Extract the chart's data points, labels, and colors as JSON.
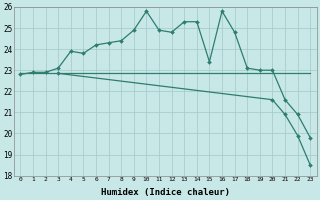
{
  "xlabel": "Humidex (Indice chaleur)",
  "x": [
    0,
    1,
    2,
    3,
    4,
    5,
    6,
    7,
    8,
    9,
    10,
    11,
    12,
    13,
    14,
    15,
    16,
    17,
    18,
    19,
    20,
    21,
    22,
    23
  ],
  "line1": [
    22.8,
    22.9,
    22.9,
    23.1,
    23.9,
    23.8,
    24.2,
    24.3,
    24.4,
    24.9,
    25.8,
    24.9,
    24.8,
    25.3,
    25.3,
    23.4,
    25.8,
    24.8,
    23.1,
    23.0,
    23.0,
    21.6,
    20.9,
    19.8
  ],
  "line2_x": [
    0,
    23
  ],
  "line2_y": [
    22.85,
    22.85
  ],
  "line3_x": [
    3,
    20,
    21,
    22,
    23
  ],
  "line3_y": [
    22.85,
    21.6,
    20.9,
    19.9,
    18.5
  ],
  "line_color": "#2e7d6e",
  "bg_color": "#c8e8e8",
  "grid_color": "#a8cccc",
  "ylim": [
    18,
    26
  ],
  "xlim": [
    -0.5,
    23.5
  ],
  "yticks": [
    18,
    19,
    20,
    21,
    22,
    23,
    24,
    25,
    26
  ],
  "xticks": [
    0,
    1,
    2,
    3,
    4,
    5,
    6,
    7,
    8,
    9,
    10,
    11,
    12,
    13,
    14,
    15,
    16,
    17,
    18,
    19,
    20,
    21,
    22,
    23
  ],
  "markersize": 2.0,
  "linewidth": 0.9
}
